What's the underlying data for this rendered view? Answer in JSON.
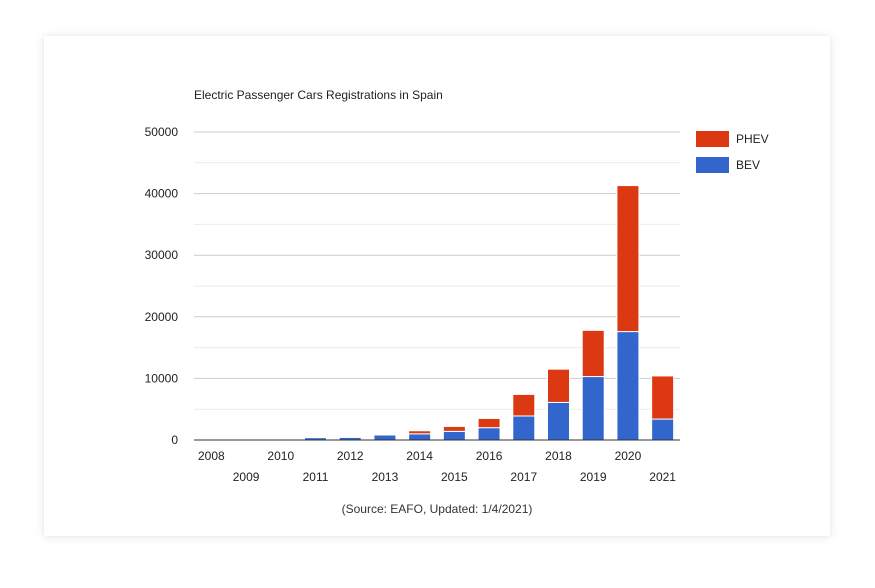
{
  "chart_data": {
    "type": "bar",
    "stacked": true,
    "title": "Electric Passenger Cars Registrations in Spain",
    "categories": [
      "2008",
      "2009",
      "2010",
      "2011",
      "2012",
      "2013",
      "2014",
      "2015",
      "2016",
      "2017",
      "2018",
      "2019",
      "2020",
      "2021"
    ],
    "series": [
      {
        "name": "BEV",
        "color": "#3366cc",
        "values": [
          20,
          30,
          60,
          390,
          430,
          820,
          1000,
          1400,
          2000,
          3900,
          6100,
          10300,
          17600,
          3400
        ]
      },
      {
        "name": "PHEV",
        "color": "#dc3912",
        "values": [
          0,
          0,
          10,
          50,
          80,
          150,
          500,
          800,
          1500,
          3500,
          5400,
          7500,
          23700,
          7000
        ]
      }
    ],
    "ylim": [
      0,
      50000
    ],
    "yticks": [
      0,
      10000,
      20000,
      30000,
      40000,
      50000
    ],
    "grid": true,
    "legend": "right",
    "source": "(Source: EAFO, Updated: 1/4/2021)"
  }
}
